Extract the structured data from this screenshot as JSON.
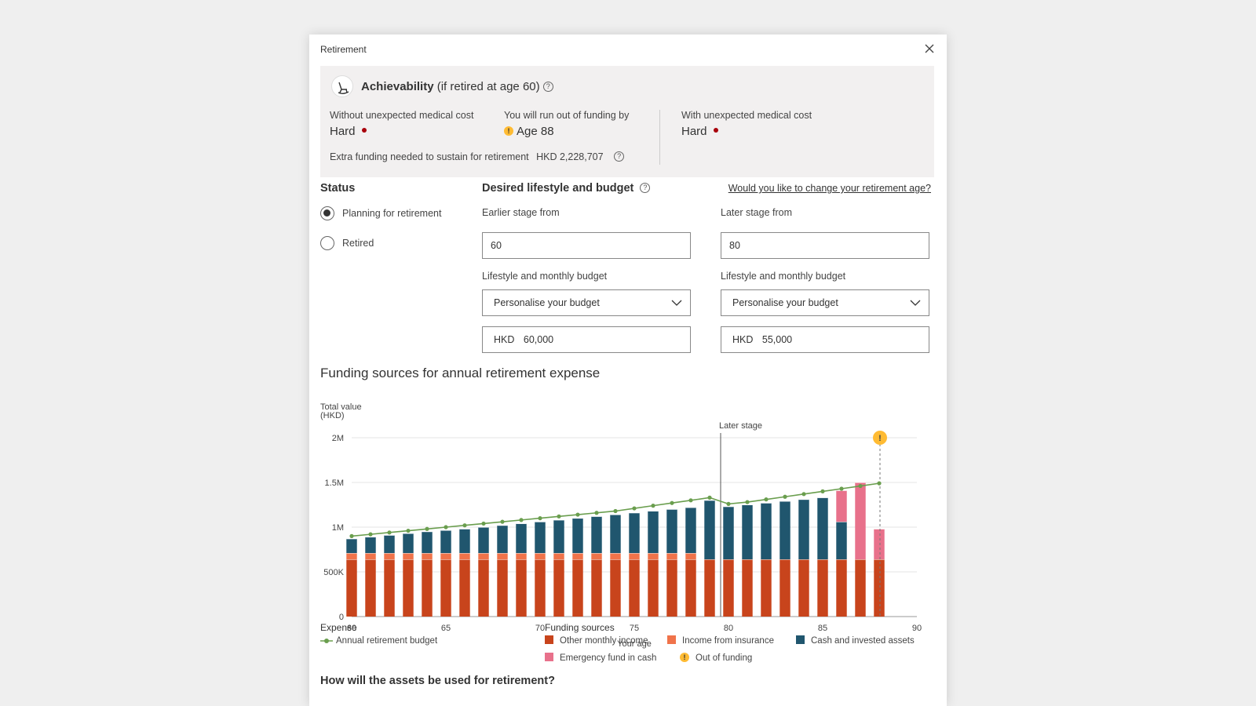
{
  "window": {
    "title": "Retirement"
  },
  "achievability": {
    "title": "Achievability",
    "subtitle": "(if retired at age 60)",
    "without_label": "Without unexpected medical cost",
    "without_value": "Hard",
    "runout_label": "You will run out of funding by",
    "runout_value": "Age 88",
    "with_label": "With unexpected medical cost",
    "with_value": "Hard",
    "extra_label": "Extra funding needed to sustain for retirement",
    "extra_value": "HKD 2,228,707"
  },
  "status": {
    "heading": "Status",
    "options": [
      {
        "label": "Planning for retirement",
        "selected": true
      },
      {
        "label": "Retired",
        "selected": false
      }
    ]
  },
  "lifestyle": {
    "heading": "Desired lifestyle and budget",
    "change_link": "Would you like to change your retirement age?",
    "earlier": {
      "stage_label": "Earlier stage from",
      "stage_value": "60",
      "budget_label": "Lifestyle and monthly budget",
      "budget_select": "Personalise your budget",
      "currency": "HKD",
      "amount": "60,000"
    },
    "later": {
      "stage_label": "Later stage from",
      "stage_value": "80",
      "budget_label": "Lifestyle and monthly budget",
      "budget_select": "Personalise your budget",
      "currency": "HKD",
      "amount": "55,000"
    }
  },
  "chart_title": "Funding sources for annual retirement expense",
  "chart_data": {
    "type": "bar",
    "stacked": true,
    "ylabel": "Total value (HKD)",
    "xlabel": "Your age",
    "ylim": [
      0,
      2000000
    ],
    "yticks": [
      {
        "v": 0,
        "label": "0"
      },
      {
        "v": 500000,
        "label": "500K"
      },
      {
        "v": 1000000,
        "label": "1M"
      },
      {
        "v": 1500000,
        "label": "1.5M"
      },
      {
        "v": 2000000,
        "label": "2M"
      }
    ],
    "xlim": [
      60,
      90
    ],
    "xticks": [
      60,
      65,
      70,
      75,
      80,
      85,
      90
    ],
    "categories": [
      60,
      61,
      62,
      63,
      64,
      65,
      66,
      67,
      68,
      69,
      70,
      71,
      72,
      73,
      74,
      75,
      76,
      77,
      78,
      79,
      80,
      81,
      82,
      83,
      84,
      85,
      86,
      87,
      88
    ],
    "series": [
      {
        "name": "Other monthly income",
        "color": "#c8441c",
        "values": [
          640000,
          640000,
          640000,
          640000,
          640000,
          640000,
          640000,
          640000,
          640000,
          640000,
          640000,
          640000,
          640000,
          640000,
          640000,
          640000,
          640000,
          640000,
          640000,
          640000,
          640000,
          640000,
          640000,
          640000,
          640000,
          640000,
          640000,
          640000,
          640000
        ]
      },
      {
        "name": "Income from insurance",
        "color": "#f0734a",
        "values": [
          70000,
          70000,
          70000,
          70000,
          70000,
          70000,
          70000,
          70000,
          70000,
          70000,
          70000,
          70000,
          70000,
          70000,
          70000,
          70000,
          70000,
          70000,
          70000,
          0,
          0,
          0,
          0,
          0,
          0,
          0,
          0,
          0,
          0
        ]
      },
      {
        "name": "Cash and invested assets",
        "color": "#20566e",
        "values": [
          160000,
          180000,
          200000,
          220000,
          240000,
          255000,
          270000,
          290000,
          310000,
          330000,
          350000,
          370000,
          390000,
          410000,
          430000,
          450000,
          470000,
          490000,
          510000,
          660000,
          590000,
          610000,
          630000,
          650000,
          670000,
          690000,
          420000,
          0,
          0
        ]
      },
      {
        "name": "Emergency fund in cash",
        "color": "#e8718b",
        "values": [
          0,
          0,
          0,
          0,
          0,
          0,
          0,
          0,
          0,
          0,
          0,
          0,
          0,
          0,
          0,
          0,
          0,
          0,
          0,
          0,
          0,
          0,
          0,
          0,
          0,
          0,
          350000,
          860000,
          340000
        ]
      }
    ],
    "line": {
      "name": "Annual retirement budget",
      "color": "#6a9e4e",
      "values": [
        900000,
        920000,
        940000,
        960000,
        980000,
        1000000,
        1020000,
        1040000,
        1060000,
        1080000,
        1100000,
        1120000,
        1140000,
        1160000,
        1180000,
        1210000,
        1240000,
        1270000,
        1300000,
        1330000,
        1260000,
        1280000,
        1310000,
        1340000,
        1370000,
        1400000,
        1430000,
        1460000,
        1490000
      ]
    },
    "markers": [
      {
        "type": "vline",
        "x": 80,
        "label": "Later stage"
      },
      {
        "type": "out_of_funding",
        "x": 88
      }
    ],
    "legend": {
      "expense_heading": "Expense",
      "expense_items": [
        "Annual retirement budget"
      ],
      "funding_heading": "Funding sources",
      "funding_items": [
        "Other monthly income",
        "Income from insurance",
        "Cash and invested assets",
        "Emergency fund in cash",
        "Out of funding"
      ]
    }
  },
  "bottom": {
    "heading": "How will the assets be used for retirement?"
  }
}
